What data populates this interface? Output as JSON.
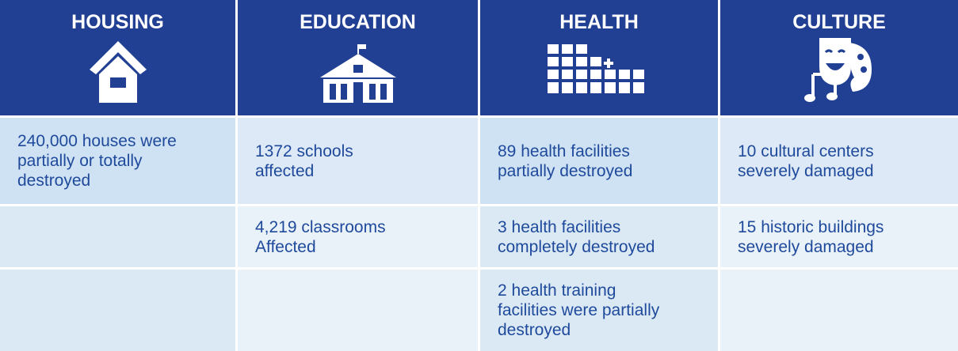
{
  "columns": [
    {
      "title": "HOUSING",
      "cells": [
        [
          "240,000 houses were",
          "partially or totally",
          "destroyed"
        ],
        null,
        null
      ]
    },
    {
      "title": "EDUCATION",
      "cells": [
        [
          "1372 schools",
          "affected"
        ],
        [
          "4,219 classrooms",
          "Affected"
        ],
        null
      ]
    },
    {
      "title": "HEALTH",
      "cells": [
        [
          "89 health facilities",
          "partially destroyed"
        ],
        [
          "3 health facilities",
          "completely destroyed"
        ],
        [
          "2 health training",
          "facilities were partially",
          "destroyed"
        ]
      ]
    },
    {
      "title": "CULTURE",
      "cells": [
        [
          "10 cultural centers",
          "severely damaged"
        ],
        [
          "15 historic buildings",
          "severely damaged"
        ],
        null
      ]
    }
  ]
}
